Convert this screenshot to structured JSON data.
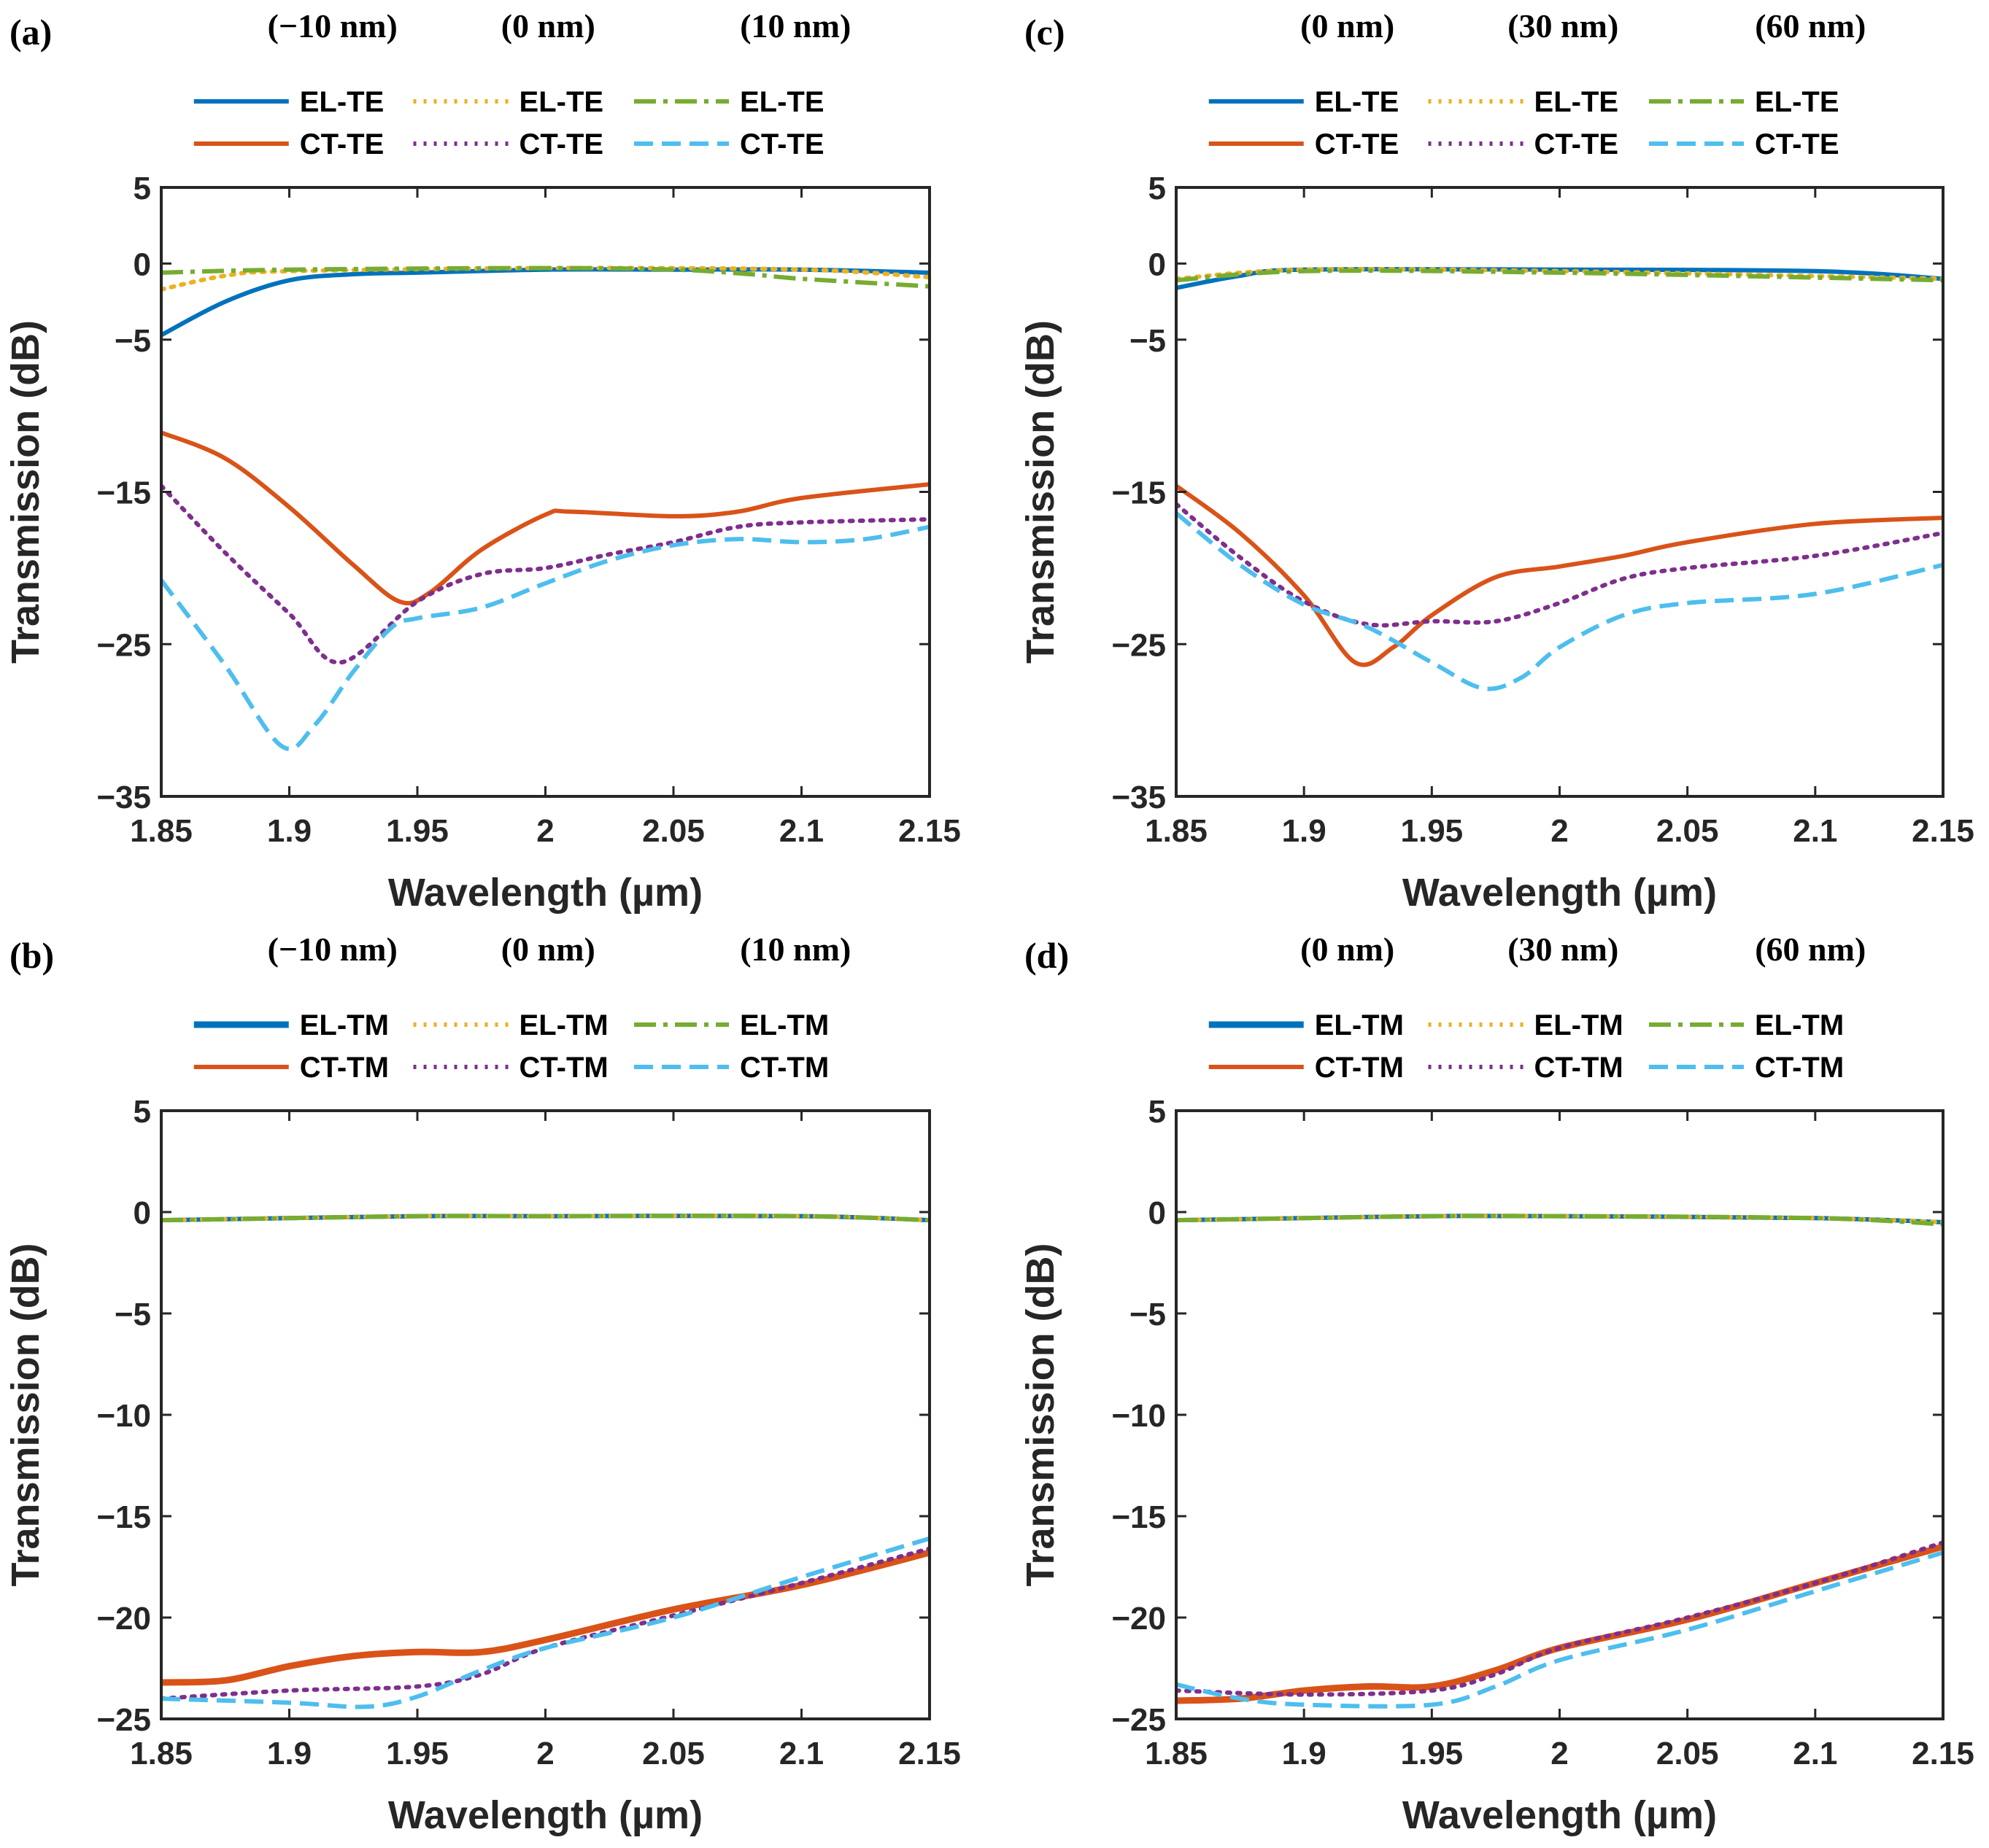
{
  "colors": {
    "blue": "#0072BD",
    "orange": "#D95319",
    "yellow": "#EDB120",
    "purple": "#7E2F8E",
    "green": "#77AC30",
    "cyan": "#4DBEEE"
  },
  "chart_data": [
    {
      "panel": "(a)",
      "type": "line",
      "xlabel": "Wavelength (µm)",
      "ylabel": "Transmission (dB)",
      "xlim": [
        1.85,
        2.15
      ],
      "ylim": [
        -35,
        5
      ],
      "xticks": [
        "1.85",
        "1.9",
        "1.95",
        "2",
        "2.05",
        "2.1",
        "2.15"
      ],
      "yticks": [
        "5",
        "0",
        "−5",
        "−15",
        "−25",
        "−35"
      ],
      "ytick_values": [
        5,
        0,
        -5,
        -15,
        -25,
        -35
      ],
      "headers": [
        "(−10 nm)",
        "(0 nm)",
        "(10 nm)"
      ],
      "series": [
        {
          "name": "EL-TE",
          "group": 0,
          "color": "blue",
          "style": "solid",
          "x": [
            1.85,
            1.875,
            1.9,
            1.925,
            1.95,
            2.0,
            2.05,
            2.1,
            2.15
          ],
          "y": [
            -4.7,
            -2.5,
            -1.1,
            -0.7,
            -0.6,
            -0.4,
            -0.4,
            -0.4,
            -0.6
          ]
        },
        {
          "name": "CT-TE",
          "group": 0,
          "color": "orange",
          "style": "solid",
          "x": [
            1.85,
            1.875,
            1.9,
            1.925,
            1.943,
            1.955,
            1.975,
            2.0,
            2.01,
            2.05,
            2.075,
            2.1,
            2.15
          ],
          "y": [
            -11.1,
            -12.8,
            -16,
            -19.8,
            -22.2,
            -21.6,
            -18.8,
            -16.5,
            -16.3,
            -16.6,
            -16.3,
            -15.4,
            -14.5
          ]
        },
        {
          "name": "EL-TE",
          "group": 1,
          "color": "yellow",
          "style": "dotted",
          "x": [
            1.85,
            1.875,
            1.9,
            2.0,
            2.1,
            2.15
          ],
          "y": [
            -1.7,
            -0.8,
            -0.5,
            -0.3,
            -0.4,
            -0.9
          ]
        },
        {
          "name": "CT-TE",
          "group": 1,
          "color": "purple",
          "style": "dotted",
          "x": [
            1.85,
            1.875,
            1.9,
            1.92,
            1.95,
            1.975,
            2.0,
            2.025,
            2.05,
            2.075,
            2.1,
            2.15
          ],
          "y": [
            -14.6,
            -19,
            -23,
            -26.2,
            -22.2,
            -20.4,
            -20,
            -19.1,
            -18.3,
            -17.3,
            -17,
            -16.8
          ]
        },
        {
          "name": "EL-TE",
          "group": 2,
          "color": "green",
          "style": "dashdot",
          "x": [
            1.85,
            1.9,
            2.0,
            2.05,
            2.08,
            2.1,
            2.15
          ],
          "y": [
            -0.6,
            -0.4,
            -0.3,
            -0.4,
            -0.7,
            -1.0,
            -1.5
          ]
        },
        {
          "name": "CT-TE",
          "group": 2,
          "color": "cyan",
          "style": "dashed",
          "x": [
            1.85,
            1.875,
            1.897,
            1.91,
            1.925,
            1.94,
            1.95,
            1.975,
            2.0,
            2.025,
            2.05,
            2.075,
            2.1,
            2.125,
            2.15
          ],
          "y": [
            -20.8,
            -26.4,
            -31.7,
            -30.3,
            -26.8,
            -23.9,
            -23.3,
            -22.6,
            -21,
            -19.5,
            -18.5,
            -18.1,
            -18.3,
            -18.1,
            -17.3
          ]
        }
      ]
    },
    {
      "panel": "(c)",
      "type": "line",
      "xlabel": "Wavelength (µm)",
      "ylabel": "Transmission (dB)",
      "xlim": [
        1.85,
        2.15
      ],
      "ylim": [
        -35,
        5
      ],
      "xticks": [
        "1.85",
        "1.9",
        "1.95",
        "2",
        "2.05",
        "2.1",
        "2.15"
      ],
      "yticks": [
        "5",
        "0",
        "−5",
        "−15",
        "−25",
        "−35"
      ],
      "ytick_values": [
        5,
        0,
        -5,
        -15,
        -25,
        -35
      ],
      "headers": [
        "(0 nm)",
        "(30 nm)",
        "(60 nm)"
      ],
      "series": [
        {
          "name": "EL-TE",
          "group": 0,
          "color": "blue",
          "style": "solid",
          "x": [
            1.85,
            1.875,
            1.9,
            2.0,
            2.1,
            2.15
          ],
          "y": [
            -1.6,
            -0.8,
            -0.4,
            -0.4,
            -0.5,
            -1.0
          ]
        },
        {
          "name": "CT-TE",
          "group": 0,
          "color": "orange",
          "style": "solid",
          "x": [
            1.85,
            1.875,
            1.9,
            1.92,
            1.935,
            1.95,
            1.975,
            2.0,
            2.025,
            2.05,
            2.1,
            2.15
          ],
          "y": [
            -14.6,
            -17.7,
            -21.8,
            -26.2,
            -25.2,
            -23.1,
            -20.6,
            -19.9,
            -19.2,
            -18.3,
            -17.1,
            -16.7
          ]
        },
        {
          "name": "EL-TE",
          "group": 1,
          "color": "yellow",
          "style": "dotted",
          "x": [
            1.85,
            1.9,
            2.0,
            2.15
          ],
          "y": [
            -1.0,
            -0.4,
            -0.5,
            -1.0
          ]
        },
        {
          "name": "CT-TE",
          "group": 1,
          "color": "purple",
          "style": "dotted",
          "x": [
            1.85,
            1.875,
            1.9,
            1.925,
            1.95,
            1.975,
            2.0,
            2.025,
            2.05,
            2.1,
            2.15
          ],
          "y": [
            -15.8,
            -19.3,
            -22.2,
            -23.7,
            -23.5,
            -23.5,
            -22.3,
            -20.7,
            -20,
            -19.2,
            -17.7
          ]
        },
        {
          "name": "EL-TE",
          "group": 2,
          "color": "green",
          "style": "dashdot",
          "x": [
            1.85,
            1.9,
            2.0,
            2.15
          ],
          "y": [
            -1.1,
            -0.5,
            -0.6,
            -1.1
          ]
        },
        {
          "name": "CT-TE",
          "group": 2,
          "color": "cyan",
          "style": "dashed",
          "x": [
            1.85,
            1.875,
            1.9,
            1.925,
            1.95,
            1.97,
            1.985,
            2.0,
            2.025,
            2.05,
            2.1,
            2.15
          ],
          "y": [
            -16.4,
            -19.8,
            -22.4,
            -23.9,
            -26.2,
            -27.9,
            -27.2,
            -25.2,
            -23.1,
            -22.3,
            -21.7,
            -19.8
          ]
        }
      ]
    },
    {
      "panel": "(b)",
      "type": "line",
      "xlabel": "Wavelength (µm)",
      "ylabel": "Transmission (dB)",
      "xlim": [
        1.85,
        2.15
      ],
      "ylim": [
        -25,
        5
      ],
      "xticks": [
        "1.85",
        "1.9",
        "1.95",
        "2",
        "2.05",
        "2.1",
        "2.15"
      ],
      "yticks": [
        "5",
        "0",
        "−5",
        "−10",
        "−15",
        "−20",
        "−25"
      ],
      "ytick_values": [
        5,
        0,
        -5,
        -10,
        -15,
        -20,
        -25
      ],
      "headers": [
        "(−10 nm)",
        "(0 nm)",
        "(10 nm)"
      ],
      "series": [
        {
          "name": "EL-TM",
          "group": 0,
          "color": "blue",
          "style": "solid",
          "x": [
            1.85,
            1.9,
            1.95,
            2.0,
            2.1,
            2.15
          ],
          "y": [
            -0.4,
            -0.3,
            -0.2,
            -0.2,
            -0.2,
            -0.4
          ]
        },
        {
          "name": "CT-TM",
          "group": 0,
          "color": "orange",
          "style": "solid",
          "x": [
            1.85,
            1.875,
            1.9,
            1.925,
            1.95,
            1.975,
            2.0,
            2.05,
            2.1,
            2.15
          ],
          "y": [
            -23.2,
            -23.1,
            -22.4,
            -21.9,
            -21.7,
            -21.7,
            -21.1,
            -19.6,
            -18.4,
            -16.8
          ]
        },
        {
          "name": "EL-TM",
          "group": 1,
          "color": "yellow",
          "style": "dotted",
          "x": [
            1.85,
            1.9,
            1.95,
            2.0,
            2.1,
            2.15
          ],
          "y": [
            -0.4,
            -0.3,
            -0.2,
            -0.2,
            -0.2,
            -0.4
          ]
        },
        {
          "name": "CT-TM",
          "group": 1,
          "color": "purple",
          "style": "dotted",
          "x": [
            1.85,
            1.9,
            1.95,
            1.975,
            2.0,
            2.05,
            2.1,
            2.15
          ],
          "y": [
            -24,
            -23.6,
            -23.4,
            -22.8,
            -21.5,
            -19.9,
            -18.3,
            -16.6
          ]
        },
        {
          "name": "EL-TM",
          "group": 2,
          "color": "green",
          "style": "dashdot",
          "x": [
            1.85,
            1.9,
            1.95,
            2.0,
            2.1,
            2.15
          ],
          "y": [
            -0.4,
            -0.3,
            -0.2,
            -0.2,
            -0.2,
            -0.4
          ]
        },
        {
          "name": "CT-TM",
          "group": 2,
          "color": "cyan",
          "style": "dashed",
          "x": [
            1.85,
            1.9,
            1.93,
            1.95,
            1.975,
            2.0,
            2.05,
            2.1,
            2.15
          ],
          "y": [
            -24,
            -24.2,
            -24.4,
            -23.9,
            -22.6,
            -21.5,
            -20,
            -18,
            -16.1
          ]
        }
      ]
    },
    {
      "panel": "(d)",
      "type": "line",
      "xlabel": "Wavelength (µm)",
      "ylabel": "Transmission (dB)",
      "xlim": [
        1.85,
        2.15
      ],
      "ylim": [
        -25,
        5
      ],
      "xticks": [
        "1.85",
        "1.9",
        "1.95",
        "2",
        "2.05",
        "2.1",
        "2.15"
      ],
      "yticks": [
        "5",
        "0",
        "−5",
        "−10",
        "−15",
        "−20",
        "−25"
      ],
      "ytick_values": [
        5,
        0,
        -5,
        -10,
        -15,
        -20,
        -25
      ],
      "headers": [
        "(0 nm)",
        "(30 nm)",
        "(60 nm)"
      ],
      "series": [
        {
          "name": "EL-TM",
          "group": 0,
          "color": "blue",
          "style": "solid",
          "x": [
            1.85,
            1.9,
            1.95,
            2.0,
            2.1,
            2.15
          ],
          "y": [
            -0.4,
            -0.3,
            -0.2,
            -0.2,
            -0.3,
            -0.5
          ]
        },
        {
          "name": "CT-TM",
          "group": 0,
          "color": "orange",
          "style": "solid",
          "x": [
            1.85,
            1.875,
            1.9,
            1.925,
            1.95,
            1.975,
            2.0,
            2.05,
            2.1,
            2.15
          ],
          "y": [
            -24.1,
            -24,
            -23.6,
            -23.4,
            -23.4,
            -22.6,
            -21.5,
            -20.1,
            -18.3,
            -16.5
          ]
        },
        {
          "name": "EL-TM",
          "group": 1,
          "color": "yellow",
          "style": "dotted",
          "x": [
            1.85,
            1.9,
            1.95,
            2.0,
            2.1,
            2.15
          ],
          "y": [
            -0.4,
            -0.3,
            -0.2,
            -0.2,
            -0.3,
            -0.5
          ]
        },
        {
          "name": "CT-TM",
          "group": 1,
          "color": "purple",
          "style": "dotted",
          "x": [
            1.85,
            1.9,
            1.95,
            1.975,
            2.0,
            2.05,
            2.1,
            2.15
          ],
          "y": [
            -23.6,
            -23.8,
            -23.6,
            -22.8,
            -21.5,
            -20,
            -18.3,
            -16.3
          ]
        },
        {
          "name": "EL-TM",
          "group": 2,
          "color": "green",
          "style": "dashdot",
          "x": [
            1.85,
            1.9,
            1.95,
            2.0,
            2.1,
            2.15
          ],
          "y": [
            -0.4,
            -0.3,
            -0.2,
            -0.2,
            -0.3,
            -0.6
          ]
        },
        {
          "name": "CT-TM",
          "group": 2,
          "color": "cyan",
          "style": "dashed",
          "x": [
            1.85,
            1.875,
            1.9,
            1.95,
            1.975,
            2.0,
            2.05,
            2.1,
            2.15
          ],
          "y": [
            -23.3,
            -24,
            -24.3,
            -24.3,
            -23.4,
            -22.1,
            -20.6,
            -18.7,
            -16.8
          ]
        }
      ]
    }
  ]
}
